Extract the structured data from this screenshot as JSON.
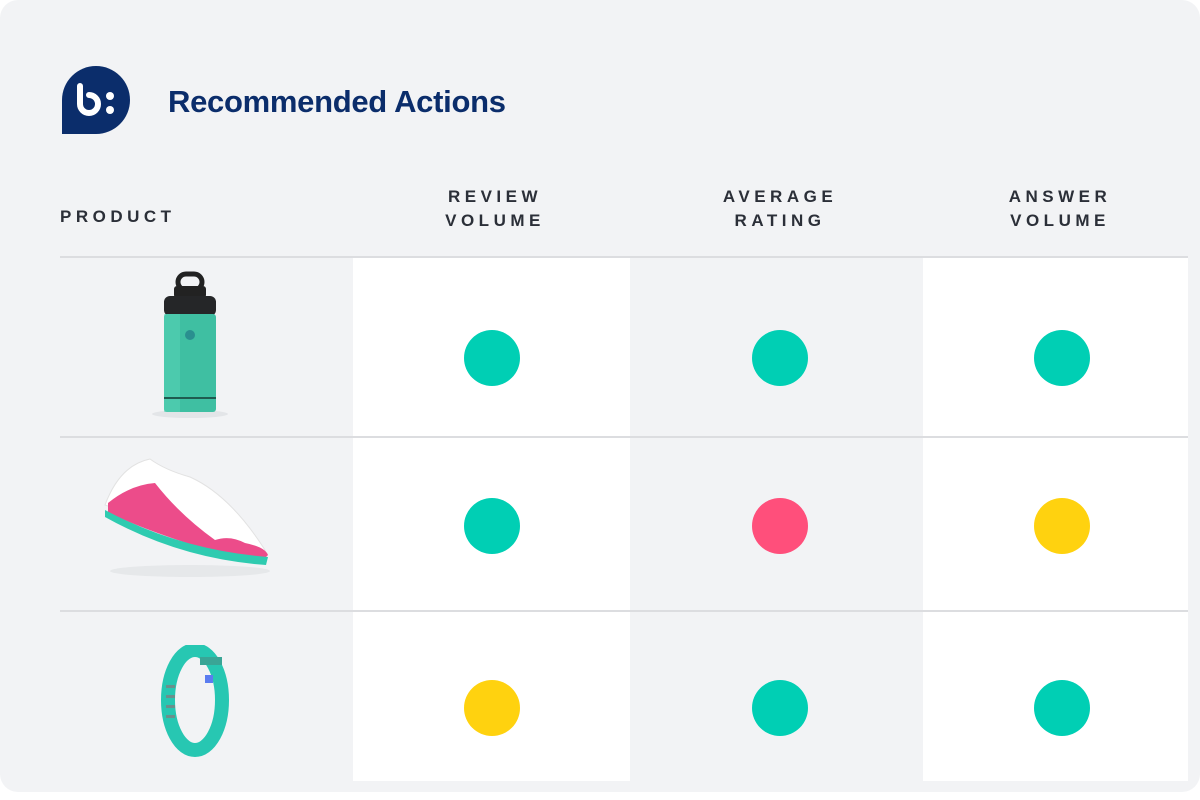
{
  "header": {
    "title": "Recommended Actions",
    "logo_text": "b:"
  },
  "columns": [
    "PRODUCT",
    "REVIEW VOLUME",
    "AVERAGE RATING",
    "ANSWER VOLUME"
  ],
  "colors": {
    "good": "#00cfb4",
    "bad": "#ff4f7b",
    "warning": "#ffd20f",
    "brand": "#0b2d6b"
  },
  "rows": [
    {
      "product_icon": "water-bottle",
      "review_volume": "good",
      "average_rating": "good",
      "answer_volume": "good"
    },
    {
      "product_icon": "sneaker",
      "review_volume": "good",
      "average_rating": "bad",
      "answer_volume": "warning"
    },
    {
      "product_icon": "fitness-band",
      "review_volume": "warning",
      "average_rating": "good",
      "answer_volume": "good"
    }
  ]
}
